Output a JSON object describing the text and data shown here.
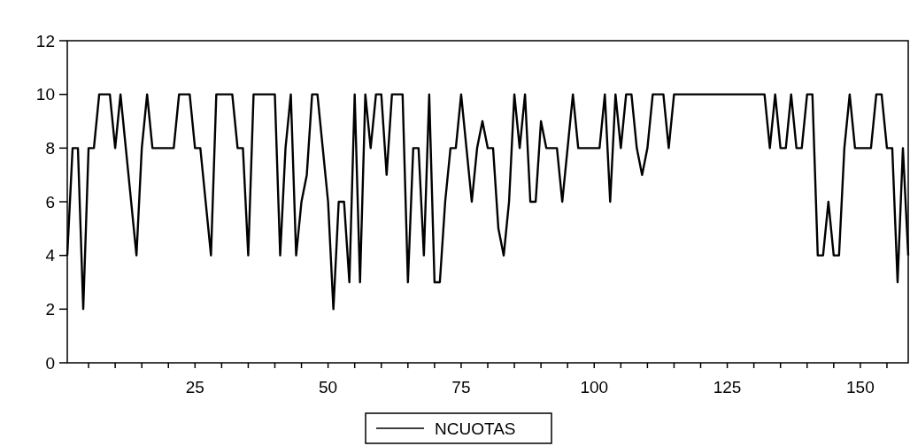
{
  "chart_data": {
    "type": "line",
    "x": [
      1,
      2,
      3,
      4,
      5,
      6,
      7,
      8,
      9,
      10,
      11,
      12,
      13,
      14,
      15,
      16,
      17,
      18,
      19,
      20,
      21,
      22,
      23,
      24,
      25,
      26,
      27,
      28,
      29,
      30,
      31,
      32,
      33,
      34,
      35,
      36,
      37,
      38,
      39,
      40,
      41,
      42,
      43,
      44,
      45,
      46,
      47,
      48,
      49,
      50,
      51,
      52,
      53,
      54,
      55,
      56,
      57,
      58,
      59,
      60,
      61,
      62,
      63,
      64,
      65,
      66,
      67,
      68,
      69,
      70,
      71,
      72,
      73,
      74,
      75,
      76,
      77,
      78,
      79,
      80,
      81,
      82,
      83,
      84,
      85,
      86,
      87,
      88,
      89,
      90,
      91,
      92,
      93,
      94,
      95,
      96,
      97,
      98,
      99,
      100,
      101,
      102,
      103,
      104,
      105,
      106,
      107,
      108,
      109,
      110,
      111,
      112,
      113,
      114,
      115,
      116,
      117,
      118,
      119,
      120,
      121,
      122,
      123,
      124,
      125,
      126,
      127,
      128,
      129,
      130,
      131,
      132,
      133,
      134,
      135,
      136,
      137,
      138,
      139,
      140,
      141,
      142,
      143,
      144,
      145,
      146,
      147,
      148,
      149,
      150,
      151,
      152,
      153,
      154,
      155,
      156,
      157,
      158,
      159
    ],
    "series": [
      {
        "name": "NCUOTAS",
        "color": "#000000",
        "values": [
          4,
          8,
          8,
          2,
          8,
          8,
          10,
          10,
          10,
          8,
          10,
          8,
          6,
          4,
          8,
          10,
          8,
          8,
          8,
          8,
          8,
          10,
          10,
          10,
          8,
          8,
          6,
          4,
          10,
          10,
          10,
          10,
          8,
          8,
          4,
          10,
          10,
          10,
          10,
          10,
          4,
          8,
          10,
          4,
          6,
          7,
          10,
          10,
          8,
          6,
          2,
          6,
          6,
          3,
          10,
          3,
          10,
          8,
          10,
          10,
          7,
          10,
          10,
          10,
          3,
          8,
          8,
          4,
          10,
          3,
          3,
          6,
          8,
          8,
          10,
          8,
          6,
          8,
          9,
          8,
          8,
          5,
          4,
          6,
          10,
          8,
          10,
          6,
          6,
          9,
          8,
          8,
          8,
          6,
          8,
          10,
          8,
          8,
          8,
          8,
          8,
          10,
          6,
          10,
          8,
          10,
          10,
          8,
          7,
          8,
          10,
          10,
          10,
          8,
          10,
          10,
          10,
          10,
          10,
          10,
          10,
          10,
          10,
          10,
          10,
          10,
          10,
          10,
          10,
          10,
          10,
          10,
          8,
          10,
          8,
          8,
          10,
          8,
          8,
          10,
          10,
          4,
          4,
          6,
          4,
          4,
          8,
          10,
          8,
          8,
          8,
          8,
          10,
          10,
          8,
          8,
          3,
          8,
          4
        ]
      }
    ],
    "xlim": [
      1,
      159
    ],
    "xticks": [
      {
        "value": 5,
        "label": null
      },
      {
        "value": 10,
        "label": null
      },
      {
        "value": 15,
        "label": null
      },
      {
        "value": 20,
        "label": null
      },
      25,
      {
        "value": 30,
        "label": null
      },
      {
        "value": 35,
        "label": null
      },
      {
        "value": 40,
        "label": null
      },
      {
        "value": 45,
        "label": null
      },
      50,
      {
        "value": 55,
        "label": null
      },
      {
        "value": 60,
        "label": null
      },
      {
        "value": 65,
        "label": null
      },
      {
        "value": 70,
        "label": null
      },
      75,
      {
        "value": 80,
        "label": null
      },
      {
        "value": 85,
        "label": null
      },
      {
        "value": 90,
        "label": null
      },
      {
        "value": 95,
        "label": null
      },
      100,
      {
        "value": 105,
        "label": null
      },
      {
        "value": 110,
        "label": null
      },
      {
        "value": 115,
        "label": null
      },
      {
        "value": 120,
        "label": null
      },
      125,
      {
        "value": 130,
        "label": null
      },
      {
        "value": 135,
        "label": null
      },
      {
        "value": 140,
        "label": null
      },
      {
        "value": 145,
        "label": null
      },
      150,
      {
        "value": 155,
        "label": null
      }
    ],
    "ylim": [
      0,
      12
    ],
    "yticks": [
      0,
      2,
      4,
      6,
      8,
      10,
      12
    ],
    "grid": false,
    "legend": "bottom",
    "marker": "none",
    "line_style": "solid"
  }
}
